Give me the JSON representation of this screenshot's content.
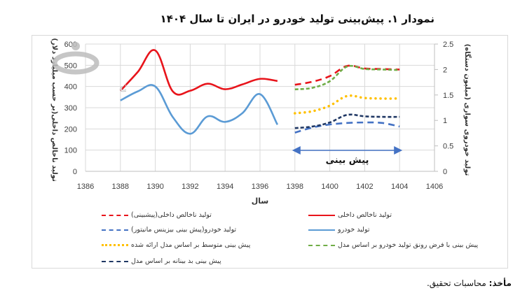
{
  "title": "نمودار ۱. پیش‌بینی تولید خودرو در ایران تا سال  ۱۴۰۴",
  "source": {
    "label": "مأخذ:",
    "text": "محاسبات تحقیق."
  },
  "chart_data": {
    "type": "line",
    "title": "نمودار ۱. پیش‌بینی تولید خودرو در ایران تا سال ۱۴۰۴",
    "xlabel": "سال",
    "ylabel_left": "تولید ناخالص داخلی(بر حسب میلیارد دلار)",
    "ylabel_right": "تولید خودروی سواری (میلیون دستگاه)",
    "x_ticks": [
      1386,
      1388,
      1390,
      1392,
      1394,
      1396,
      1398,
      1400,
      1402,
      1404,
      1406
    ],
    "xlim": [
      1386,
      1406
    ],
    "ylim_left": [
      0,
      600
    ],
    "y_ticks_left": [
      0,
      100,
      200,
      300,
      400,
      500,
      600
    ],
    "ylim_right": [
      0,
      2.5
    ],
    "y_ticks_right": [
      0,
      0.5,
      1,
      1.5,
      2,
      2.5
    ],
    "grid": true,
    "legend_position": "bottom",
    "annotation": {
      "text": "پیش بینی",
      "from": 1398,
      "to": 1404,
      "arrow": "double"
    },
    "series": [
      {
        "name": "تولید ناخالص داخلی",
        "axis": "left",
        "style": "solid",
        "color": "#e8141b",
        "x": [
          1388,
          1389,
          1390,
          1391,
          1392,
          1393,
          1394,
          1395,
          1396,
          1397
        ],
        "values": [
          380,
          469,
          570,
          377,
          380,
          413,
          387,
          410,
          436,
          426
        ]
      },
      {
        "name": "تولید ناخالص داخلی(پیشبینی)",
        "axis": "right",
        "style": "dashed",
        "color": "#e8141b",
        "x": [
          1398,
          1399,
          1400,
          1401,
          1402,
          1403,
          1404
        ],
        "values": [
          1.7,
          1.76,
          1.87,
          2.07,
          2.02,
          2.01,
          2.0
        ]
      },
      {
        "name": "تولید خودرو",
        "axis": "left",
        "style": "solid",
        "color": "#5b9bd5",
        "x": [
          1388,
          1389,
          1390,
          1391,
          1392,
          1393,
          1394,
          1395,
          1396,
          1397
        ],
        "values": [
          334,
          377,
          400,
          256,
          177,
          259,
          233,
          275,
          364,
          220
        ]
      },
      {
        "name": "تولید خودرو(پیش بینی بیزینس مانیتور)",
        "axis": "right",
        "style": "dashed",
        "color": "#4472c4",
        "x": [
          1398,
          1399,
          1400,
          1401,
          1402,
          1403,
          1404
        ],
        "values": [
          0.76,
          0.86,
          0.92,
          0.95,
          0.96,
          0.95,
          0.88
        ]
      },
      {
        "name": "پیش بینی با فرض رونق تولید خودرو بر اساس مدل",
        "axis": "right",
        "style": "short-dash",
        "color": "#70ad47",
        "x": [
          1398,
          1399,
          1400,
          1401,
          1402,
          1403,
          1404
        ],
        "values": [
          1.61,
          1.64,
          1.77,
          2.06,
          2.01,
          2.0,
          1.99
        ]
      },
      {
        "name": "پیش بینی متوسط بر اساس مدل ارائه شده",
        "axis": "right",
        "style": "dotted",
        "color": "#ffc000",
        "x": [
          1398,
          1399,
          1400,
          1401,
          1402,
          1403,
          1404
        ],
        "values": [
          1.14,
          1.18,
          1.29,
          1.48,
          1.44,
          1.43,
          1.43
        ]
      },
      {
        "name": "پیش بینی بد بینانه بر اساس مدل",
        "axis": "right",
        "style": "short-dash",
        "color": "#203864",
        "x": [
          1398,
          1399,
          1400,
          1401,
          1402,
          1403,
          1404
        ],
        "values": [
          0.85,
          0.88,
          0.96,
          1.11,
          1.08,
          1.07,
          1.07
        ]
      }
    ]
  },
  "legend": [
    {
      "label": "تولید ناخالص داخلی(پیشبینی)",
      "color": "#e8141b",
      "style": "dashed"
    },
    {
      "label": "تولید ناخالص داخلی",
      "color": "#e8141b",
      "style": "solid"
    },
    {
      "label": "تولید خودرو(پیش بینی بیزینس مانیتور)",
      "color": "#4472c4",
      "style": "dashed"
    },
    {
      "label": "تولید خودرو",
      "color": "#5b9bd5",
      "style": "solid"
    },
    {
      "label": "پیش بینی متوسط بر اساس مدل ارائه شده",
      "color": "#ffc000",
      "style": "dotted"
    },
    {
      "label": "پیش بینی با فرض رونق تولید خودرو بر اساس مدل",
      "color": "#70ad47",
      "style": "short-dash"
    },
    {
      "label": "پیش بینی بد بینانه بر اساس مدل",
      "color": "#203864",
      "style": "short-dash"
    }
  ]
}
